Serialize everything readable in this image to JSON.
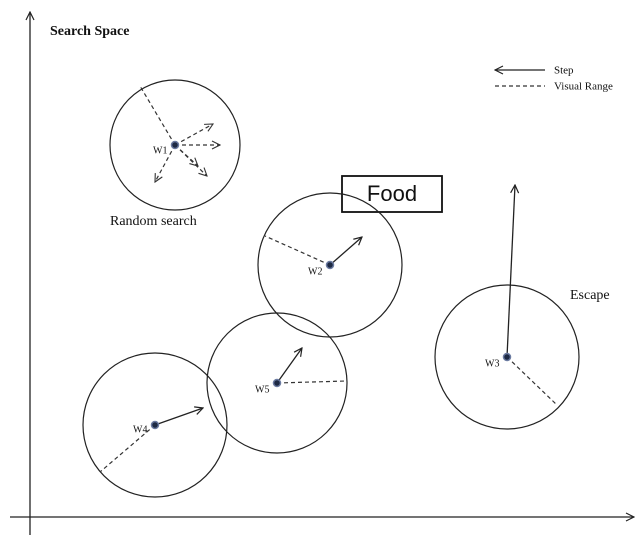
{
  "title": "Search Space",
  "legend": {
    "step": "Step",
    "visual_range": "Visual Range"
  },
  "food": "Food",
  "annotations": {
    "random_search": "Random search",
    "escape": "Escape"
  },
  "nodes": [
    {
      "label": "W1"
    },
    {
      "label": "W2"
    },
    {
      "label": "W3"
    },
    {
      "label": "W4"
    },
    {
      "label": "W5"
    }
  ]
}
